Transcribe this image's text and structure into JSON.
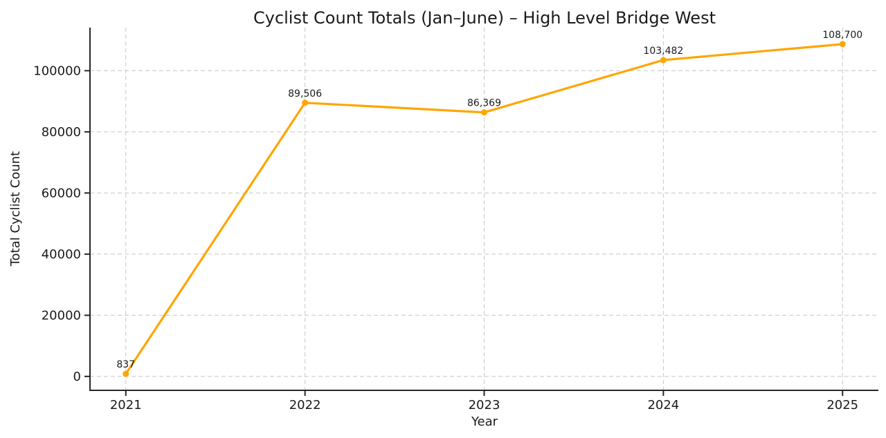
{
  "chart_data": {
    "type": "line",
    "title": "Cyclist Count Totals (Jan–June) – High Level Bridge West",
    "xlabel": "Year",
    "ylabel": "Total Cyclist Count",
    "x": [
      2021,
      2022,
      2023,
      2024,
      2025
    ],
    "values": [
      837,
      89506,
      86369,
      103482,
      108700
    ],
    "point_labels": [
      "837",
      "89,506",
      "86,369",
      "103,482",
      "108,700"
    ],
    "xticks": [
      2021,
      2022,
      2023,
      2024,
      2025
    ],
    "xtick_labels": [
      "2021",
      "2022",
      "2023",
      "2024",
      "2025"
    ],
    "yticks": [
      0,
      20000,
      40000,
      60000,
      80000,
      100000
    ],
    "ytick_labels": [
      "0",
      "20000",
      "40000",
      "60000",
      "80000",
      "100000"
    ],
    "xlim": [
      2020.8,
      2025.2
    ],
    "ylim": [
      -4556,
      114093
    ],
    "grid": true,
    "legend": "none",
    "line_color": "#FFA500",
    "marker": "circle",
    "grid_color": "#cccccc",
    "spine_color": "#262626",
    "text_color": "#1a1a1a",
    "background": "#ffffff"
  }
}
